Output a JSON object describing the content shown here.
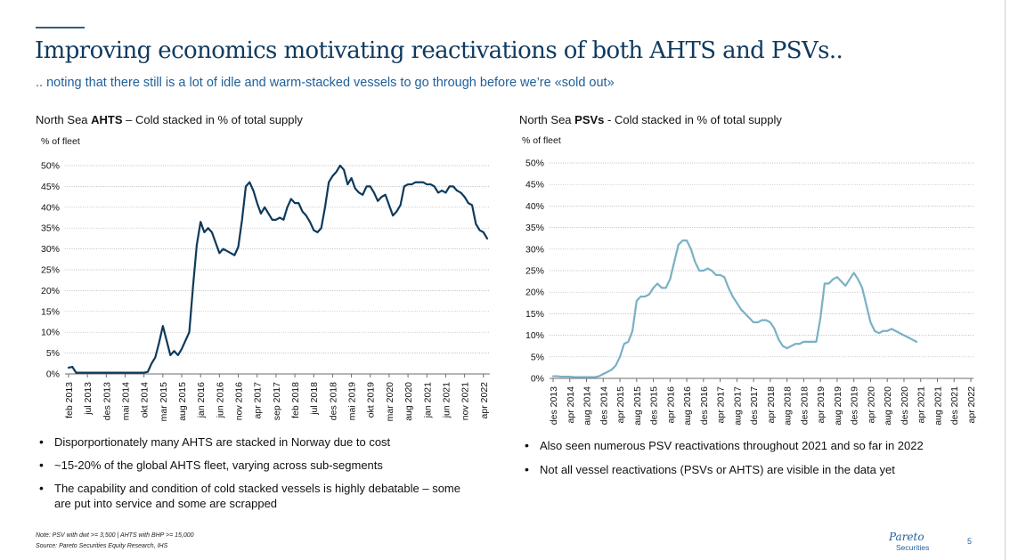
{
  "title": "Improving economics motivating reactivations of both AHTS and PSVs..",
  "subtitle": ".. noting that there still is a lot of idle and warm-stacked vessels to go through before we’re «sold out»",
  "charts": {
    "left": {
      "title_pre": "North Sea ",
      "title_bold": "AHTS",
      "title_post": " – Cold stacked in % of total supply",
      "ylabel": "% of fleet"
    },
    "right": {
      "title_pre": "North Sea ",
      "title_bold": "PSVs",
      "title_post": " - Cold stacked in % of total supply",
      "ylabel": "% of fleet"
    }
  },
  "colors": {
    "title": "#0f3a5e",
    "subtitle": "#1f5f9a",
    "ahts_line": "#0d3a5c",
    "psv_line": "#79b0c6"
  },
  "chart_data": [
    {
      "type": "line",
      "title": "North Sea AHTS – Cold stacked in % of total supply",
      "ylabel": "% of fleet",
      "ylim": [
        0,
        50
      ],
      "yticks": [
        "0%",
        "5%",
        "10%",
        "15%",
        "20%",
        "25%",
        "30%",
        "35%",
        "40%",
        "45%",
        "50%"
      ],
      "grid": true,
      "x_tick_labels": [
        "feb 2013",
        "jul 2013",
        "des 2013",
        "mai 2014",
        "okt 2014",
        "mar 2015",
        "aug 2015",
        "jan 2016",
        "jun 2016",
        "nov 2016",
        "apr 2017",
        "sep 2017",
        "feb 2018",
        "jul 2018",
        "des 2018",
        "mai 2019",
        "okt 2019",
        "mar 2020",
        "aug 2020",
        "jan 2021",
        "jun 2021",
        "nov 2021",
        "apr 2022"
      ],
      "x_tick_months": [
        0,
        5,
        10,
        15,
        20,
        25,
        30,
        35,
        40,
        45,
        50,
        55,
        60,
        65,
        70,
        75,
        80,
        85,
        90,
        95,
        100,
        105,
        110
      ],
      "series": [
        {
          "x_start": "feb 2013",
          "values": [
            1.5,
            1.7,
            0.3,
            0.3,
            0.3,
            0.3,
            0.3,
            0.3,
            0.3,
            0.3,
            0.3,
            0.3,
            0.3,
            0.3,
            0.3,
            0.3,
            0.3,
            0.3,
            0.3,
            0.3,
            0.3,
            0.5,
            2.5,
            4,
            7.5,
            11.5,
            8,
            4.5,
            5.5,
            4.5,
            6,
            8,
            10,
            21,
            31,
            36.5,
            34,
            35,
            34,
            31.5,
            29,
            30,
            29.5,
            29,
            28.5,
            30.5,
            37,
            45,
            46,
            44,
            41,
            38.5,
            40,
            38.5,
            37,
            37,
            37.5,
            37,
            40,
            42,
            41,
            41,
            39,
            38,
            36.5,
            34.5,
            34,
            35,
            40,
            46,
            47.5,
            48.5,
            50,
            49,
            45.5,
            47,
            44.5,
            43.5,
            43,
            45,
            45,
            43.5,
            41.5,
            42.5,
            43,
            40.5,
            38,
            39,
            40.5,
            45,
            45.5,
            45.5,
            46,
            46,
            46,
            45.5,
            45.5,
            45,
            43.5,
            44,
            43.5,
            45,
            45,
            44,
            43.5,
            42.5,
            41,
            40.5,
            36,
            34.5,
            34,
            32.5
          ]
        }
      ]
    },
    {
      "type": "line",
      "title": "North Sea PSVs - Cold stacked in % of total supply",
      "ylabel": "% of fleet",
      "ylim": [
        0,
        50
      ],
      "yticks": [
        "0%",
        "5%",
        "10%",
        "15%",
        "20%",
        "25%",
        "30%",
        "35%",
        "40%",
        "45%",
        "50%"
      ],
      "grid": true,
      "x_tick_labels": [
        "des 2013",
        "apr 2014",
        "aug 2014",
        "des 2014",
        "apr 2015",
        "aug 2015",
        "des 2015",
        "apr 2016",
        "aug 2016",
        "des 2016",
        "apr 2017",
        "aug 2017",
        "des 2017",
        "apr 2018",
        "aug 2018",
        "des 2018",
        "apr 2019",
        "aug 2019",
        "des 2019",
        "apr 2020",
        "aug 2020",
        "des 2020",
        "apr 2021",
        "aug 2021",
        "des 2021",
        "apr 2022"
      ],
      "x_tick_months": [
        0,
        4,
        8,
        12,
        16,
        20,
        24,
        28,
        32,
        36,
        40,
        44,
        48,
        52,
        56,
        60,
        64,
        68,
        72,
        76,
        80,
        84,
        88,
        92,
        96,
        100
      ],
      "series": [
        {
          "x_start": "des 2013",
          "values": [
            0.5,
            0.5,
            0.4,
            0.4,
            0.4,
            0.3,
            0.3,
            0.3,
            0.3,
            0.3,
            0.3,
            0.5,
            1,
            1.5,
            2,
            3,
            5,
            8,
            8.5,
            11,
            18,
            19,
            19,
            19.5,
            21,
            22,
            21,
            21,
            23,
            27,
            31,
            32,
            32,
            30,
            27,
            25,
            25,
            25.5,
            25,
            24,
            24,
            23.5,
            21,
            19,
            17.5,
            16,
            15,
            14,
            13,
            13,
            13.5,
            13.5,
            13,
            11.5,
            9,
            7.5,
            7,
            7.5,
            8,
            8,
            8.5,
            8.5,
            8.5,
            8.5,
            14,
            22,
            22,
            23,
            23.5,
            22.5,
            21.5,
            23,
            24.5,
            23,
            21,
            17,
            13,
            11,
            10.5,
            11,
            11,
            11.5,
            11,
            10.5,
            10,
            9.5,
            9,
            8.5
          ]
        }
      ]
    }
  ],
  "bullets_left": [
    "Disporportionately many AHTS are stacked in Norway due to cost",
    "~15-20% of the global AHTS fleet, varying across sub-segments",
    "The capability and condition of cold stacked vessels is highly debatable – some are put into service and some are scrapped"
  ],
  "bullets_right": [
    "Also seen numerous PSV reactivations throughout 2021 and so far in 2022",
    "Not all vessel reactivations (PSVs or AHTS) are visible in the data yet"
  ],
  "note": "Note: PSV with dwt >= 3,500 | AHTS with BHP >= 15,000",
  "source": "Source: Pareto Securities Equity Research, IHS",
  "logo": {
    "name": "Pareto",
    "sub": "Securities"
  },
  "page_number": "5"
}
